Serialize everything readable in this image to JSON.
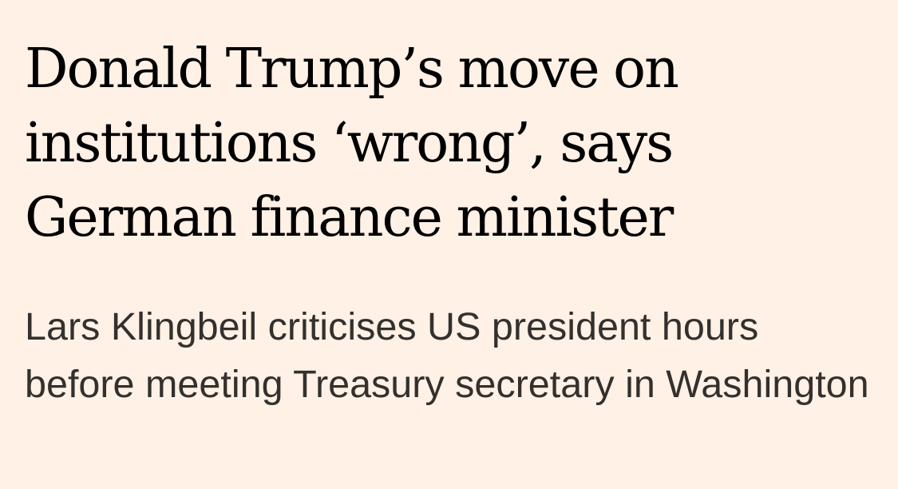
{
  "article": {
    "headline": "Donald Trump’s move on institutions ‘wrong’, says German finance minister",
    "standfirst": "Lars Klingbeil criticises US president hours before meeting Treasury secretary in Washington"
  },
  "colors": {
    "background": "#fff1e5",
    "headline": "#000000",
    "standfirst": "#33302e"
  }
}
